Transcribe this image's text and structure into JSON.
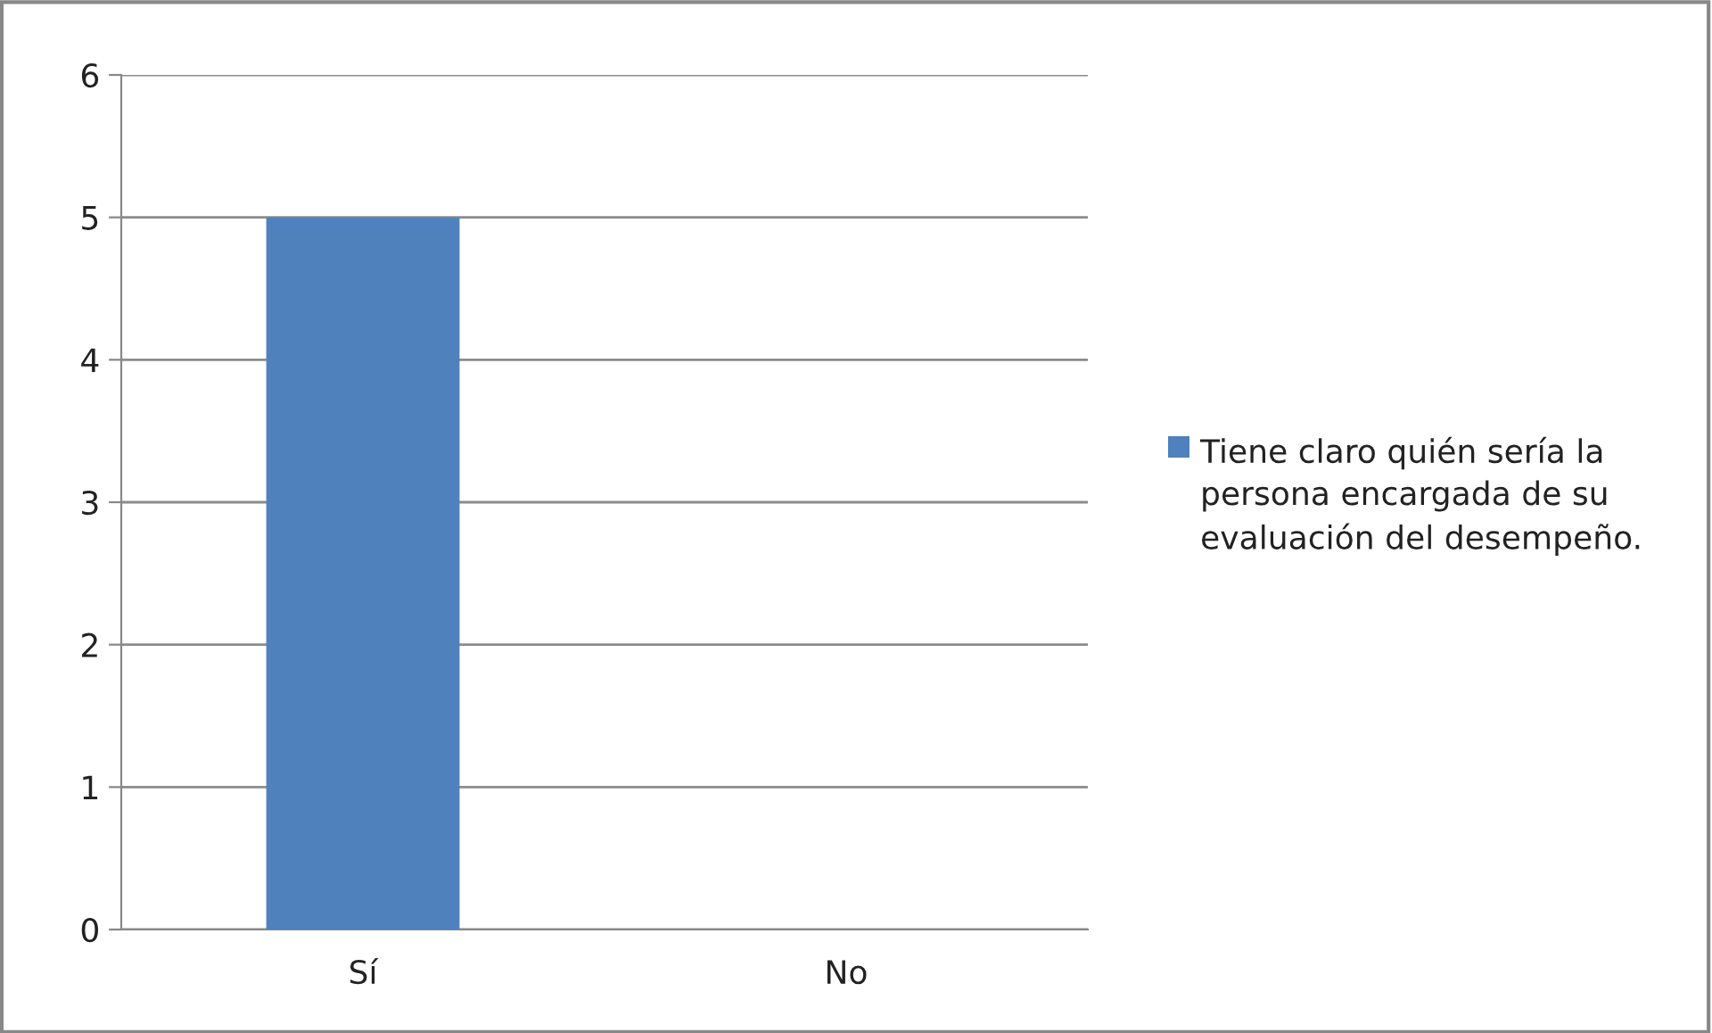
{
  "chart_data": {
    "type": "bar",
    "categories": [
      "Sí",
      "No"
    ],
    "series": [
      {
        "name": "Tiene claro quién sería la persona encargada de su evaluación del desempeño.",
        "color": "#4f81bd",
        "values": [
          5,
          0
        ]
      }
    ],
    "ylim": [
      0,
      6
    ],
    "yticks": [
      0,
      1,
      2,
      3,
      4,
      5,
      6
    ],
    "grid": "y",
    "legend": "right"
  }
}
